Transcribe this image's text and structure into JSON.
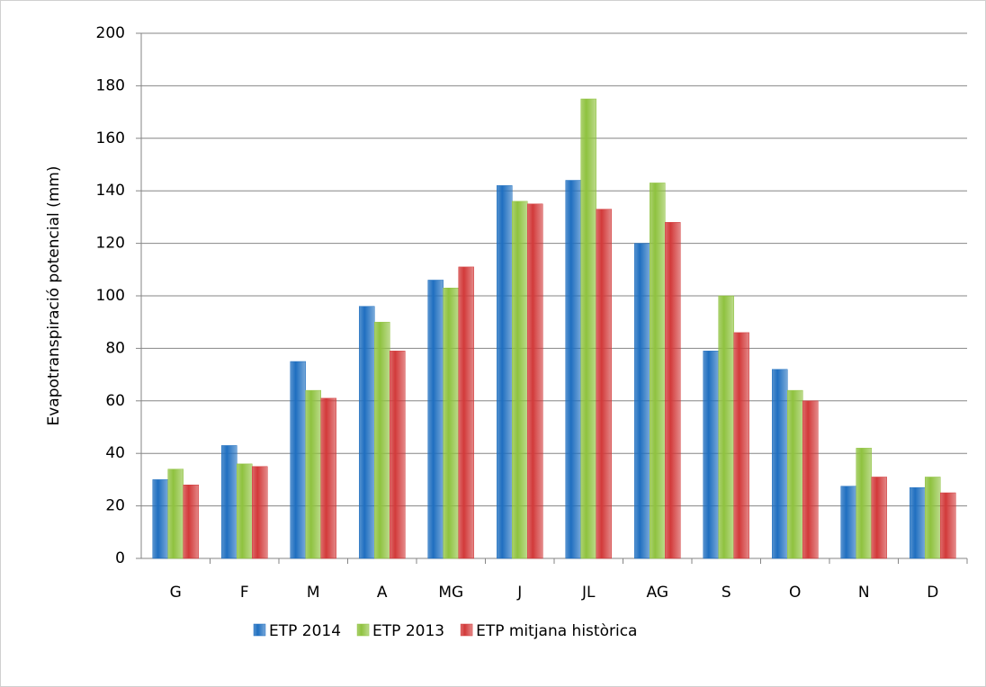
{
  "chart_data": {
    "type": "bar",
    "y_label": "Evapotranspiració potencial (mm)",
    "categories": [
      "G",
      "F",
      "M",
      "A",
      "MG",
      "J",
      "JL",
      "AG",
      "S",
      "O",
      "N",
      "D"
    ],
    "series": [
      {
        "name": "ETP 2014",
        "color": "#1f6fc0",
        "values": [
          30,
          43,
          75,
          96,
          106,
          142,
          144,
          120,
          79,
          72,
          27.5,
          27
        ]
      },
      {
        "name": "ETP 2013",
        "color": "#8fc23f",
        "values": [
          34,
          36,
          64,
          90,
          103,
          136,
          175,
          143,
          100,
          64,
          42,
          31
        ]
      },
      {
        "name": "ETP mitjana històrica",
        "color": "#d23a3a",
        "values": [
          28,
          35,
          61,
          79,
          111,
          135,
          133,
          128,
          86,
          60,
          31,
          25
        ]
      }
    ],
    "ylim": [
      0,
      200
    ],
    "yticks": [
      0,
      20,
      40,
      60,
      80,
      100,
      120,
      140,
      160,
      180,
      200
    ],
    "grid": true,
    "legend": "bottom"
  }
}
